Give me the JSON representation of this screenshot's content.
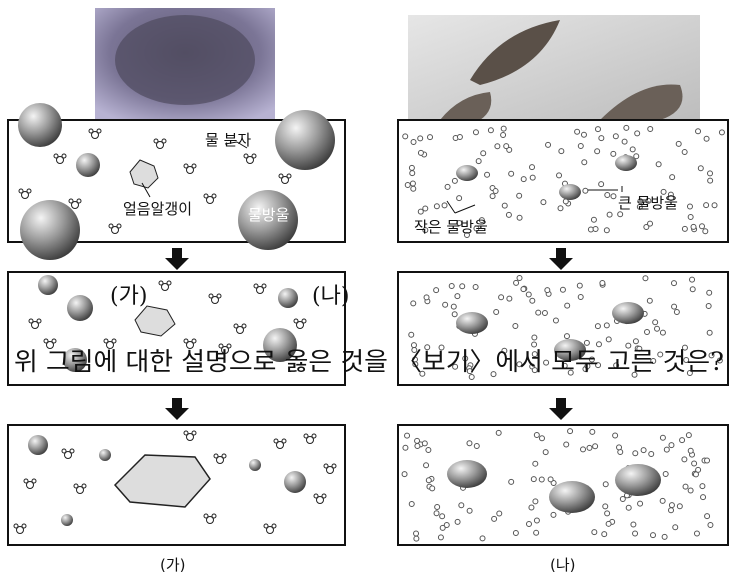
{
  "left": {
    "molecule_label": "물 분자",
    "ice_label": "얼음알갱이",
    "droplet_label": "물방울",
    "caption": "(가)"
  },
  "right": {
    "small_label": "작은 물방울",
    "large_label": "큰 물방울",
    "caption": "(나)"
  },
  "overlay": {
    "label_a": "(가)",
    "label_b": "(나)",
    "question": "위 그림에 대한 설명으로 옳은 것을 〈보기〉에서 모두 고른 것은?"
  }
}
